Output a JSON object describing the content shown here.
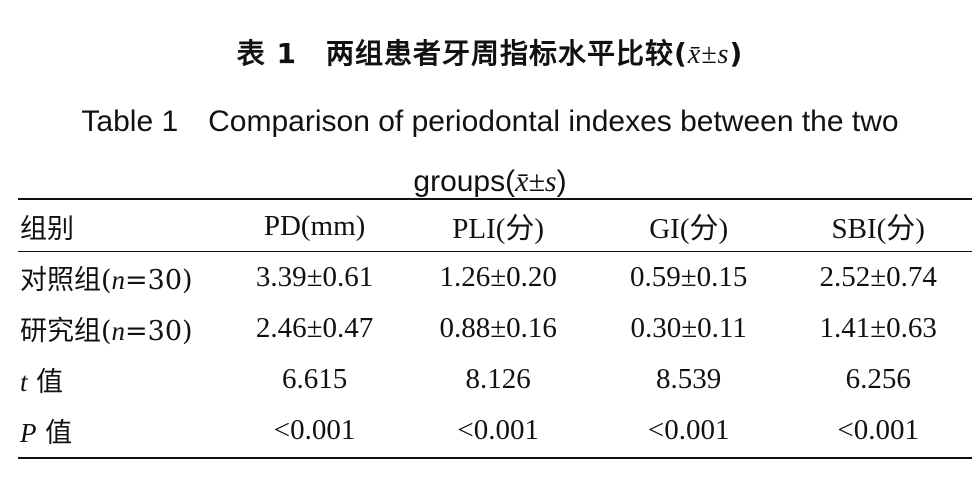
{
  "title_cn": {
    "text": "表 1　两组患者牙周指标水平比较",
    "stat_open": "(",
    "stat": "x̄±s",
    "stat_close": ")"
  },
  "title_en": {
    "text": "Table 1　Comparison of periodontal indexes between the two groups",
    "stat_open": "(",
    "stat": "x̄±s",
    "stat_close": ")"
  },
  "table": {
    "headers": [
      "组别",
      "PD(mm)",
      "PLI(分)",
      "GI(分)",
      "SBI(分)"
    ],
    "rows": [
      {
        "label_pre": "对照组(",
        "label_n": "n",
        "label_post": "=30)",
        "cells": [
          "3.39±0.61",
          "1.26±0.20",
          "0.59±0.15",
          "2.52±0.74"
        ]
      },
      {
        "label_pre": "研究组(",
        "label_n": "n",
        "label_post": "=30)",
        "cells": [
          "2.46±0.47",
          "0.88±0.16",
          "0.30±0.11",
          "1.41±0.63"
        ]
      },
      {
        "label_pre": "",
        "label_n": "t",
        "label_post": " 值",
        "cells": [
          "6.615",
          "8.126",
          "8.539",
          "6.256"
        ]
      },
      {
        "label_pre": "",
        "label_n": "P",
        "label_post": " 值",
        "cells": [
          "<0.001",
          "<0.001",
          "<0.001",
          "<0.001"
        ]
      }
    ]
  }
}
